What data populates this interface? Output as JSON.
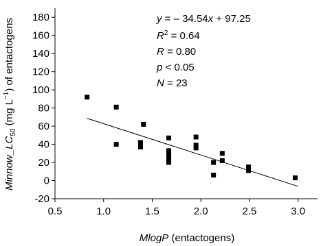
{
  "chart_data": {
    "type": "scatter",
    "xlabel": {
      "italic": "MlogP",
      "rest": " (entactogens)"
    },
    "ylabel": {
      "italic_main": "Minnow_LC",
      "subscript": "50",
      "unit_open": " (mg L",
      "unit_sup": "−1",
      "unit_close": ") of entactogens"
    },
    "xlim": [
      0.5,
      3.2
    ],
    "ylim": [
      -20,
      190
    ],
    "xticks": [
      0.5,
      1.0,
      1.5,
      2.0,
      2.5,
      3.0
    ],
    "xtick_labels": [
      "0.5",
      "1.0",
      "1.5",
      "2.0",
      "2.5",
      "3.0"
    ],
    "yticks": [
      -20,
      0,
      20,
      40,
      60,
      80,
      100,
      120,
      140,
      160,
      180
    ],
    "ytick_labels": [
      "-20",
      "0",
      "20",
      "40",
      "60",
      "80",
      "100",
      "120",
      "140",
      "160",
      "180"
    ],
    "points": [
      {
        "x": 0.83,
        "y": 92
      },
      {
        "x": 1.13,
        "y": 81
      },
      {
        "x": 1.13,
        "y": 40
      },
      {
        "x": 1.38,
        "y": 42
      },
      {
        "x": 1.38,
        "y": 40
      },
      {
        "x": 1.38,
        "y": 37
      },
      {
        "x": 1.41,
        "y": 62
      },
      {
        "x": 1.67,
        "y": 47
      },
      {
        "x": 1.67,
        "y": 33
      },
      {
        "x": 1.67,
        "y": 30
      },
      {
        "x": 1.67,
        "y": 27
      },
      {
        "x": 1.67,
        "y": 24
      },
      {
        "x": 1.67,
        "y": 20
      },
      {
        "x": 1.95,
        "y": 48
      },
      {
        "x": 1.95,
        "y": 39
      },
      {
        "x": 1.95,
        "y": 36
      },
      {
        "x": 2.13,
        "y": 20
      },
      {
        "x": 2.13,
        "y": 6
      },
      {
        "x": 2.22,
        "y": 30
      },
      {
        "x": 2.22,
        "y": 22
      },
      {
        "x": 2.49,
        "y": 15
      },
      {
        "x": 2.49,
        "y": 11
      },
      {
        "x": 2.97,
        "y": 3
      }
    ],
    "fit_line": {
      "slope": -34.54,
      "intercept": 97.25,
      "x_range": [
        0.83,
        3.0
      ]
    },
    "annotations": {
      "equation": {
        "y_var": "y",
        "rest": " = – 34.54",
        "x_var": "x",
        "tail": " + 97.25"
      },
      "r2": {
        "var": "R",
        "sup": "2",
        "rest": " = 0.64"
      },
      "r": {
        "var": "R",
        "rest": " = 0.80"
      },
      "p": {
        "var": "p",
        "rest": " < 0.05"
      },
      "n": {
        "var": "N",
        "rest": " = 23"
      }
    },
    "grid": false,
    "legend": "none",
    "colors": {
      "marker": "#000000",
      "line": "#000000",
      "axis": "#000000"
    }
  }
}
